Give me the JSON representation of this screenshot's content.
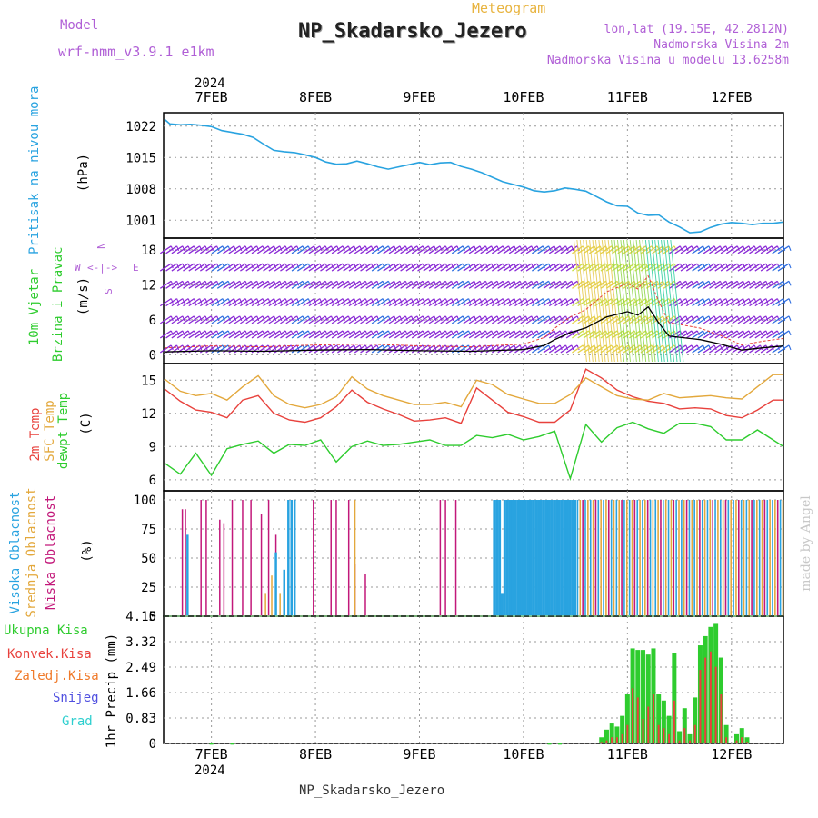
{
  "header": {
    "model_label": "Model",
    "model_name": "wrf-nmm_v3.9.1 e1km",
    "title": "Meteogram",
    "station": "NP_Skadarsko_Jezero",
    "lonlat": "lon,lat (19.15E, 42.2812N)",
    "elev": "Nadmorska Visina 2m",
    "elev_model": "Nadmorska Visina u modelu 13.6258m"
  },
  "footer_station": "NP_Skadarsko_Jezero",
  "credit": "made by Angel",
  "year_top": "2024",
  "year_bottom": "2024",
  "date_ticks": [
    "7FEB",
    "8FEB",
    "9FEB",
    "10FEB",
    "11FEB",
    "12FEB"
  ],
  "panels": {
    "pressure": {
      "label": "Pritisak na nivou mora",
      "unit": "(hPa)",
      "ticks": [
        "1022",
        "1015",
        "1008",
        "1001"
      ]
    },
    "wind": {
      "label1": "10m Vjetar",
      "label2": "Brzina i Pravac",
      "unit": "(m/s)",
      "ticks": [
        "18",
        "12",
        "6",
        "0"
      ],
      "compass": {
        "n": "N",
        "s": "S",
        "w": "W",
        "e": "E",
        "arrows": "<-|->"
      }
    },
    "temp": {
      "label1": "2m Temp",
      "label2": "SFC Temp",
      "label3": "dewpt Temp",
      "unit": "(C)",
      "ticks": [
        "15",
        "12",
        "9",
        "6"
      ]
    },
    "cloud": {
      "label1": "Visoka Oblacnost",
      "label2": "Srednja Oblacnost",
      "label3": "Niska Oblacnost",
      "unit": "(%)",
      "ticks": [
        "100",
        "75",
        "50",
        "25",
        "0"
      ]
    },
    "precip": {
      "unit": "1hr Precip (mm)",
      "ticks": [
        "4.15",
        "3.32",
        "2.49",
        "1.66",
        "0.83",
        "0"
      ],
      "legend": [
        "Ukupna Kisa",
        "Konvek.Kisa",
        "Zaledj.Kisa",
        "Snijeg",
        "Grad"
      ]
    }
  },
  "colors": {
    "pressure": "#29a3e0",
    "temp2m": "#e8413c",
    "sfc": "#e3a83c",
    "dewpt": "#2ecc2e",
    "high": "#29a3e0",
    "mid": "#e3a83c",
    "low": "#c2187a",
    "total": "#2ecc2e",
    "conv": "#e8413c",
    "frz": "#f07a2a",
    "snow": "#5050e0",
    "hail": "#2ecfcf",
    "axis_purple": "#b05fd6"
  },
  "chart_data": [
    {
      "type": "line",
      "name": "pressure",
      "x_range_days": [
        6.54,
        12.5
      ],
      "ylim": [
        997,
        1025
      ],
      "x": [
        6.55,
        6.6,
        6.7,
        6.8,
        6.9,
        7.0,
        7.1,
        7.2,
        7.3,
        7.4,
        7.5,
        7.6,
        7.7,
        7.8,
        7.9,
        8.0,
        8.1,
        8.2,
        8.3,
        8.4,
        8.5,
        8.6,
        8.7,
        8.8,
        8.9,
        9.0,
        9.1,
        9.2,
        9.3,
        9.4,
        9.5,
        9.6,
        9.7,
        9.8,
        9.9,
        10.0,
        10.1,
        10.2,
        10.3,
        10.4,
        10.5,
        10.6,
        10.7,
        10.8,
        10.9,
        11.0,
        11.1,
        11.2,
        11.3,
        11.4,
        11.5,
        11.6,
        11.7,
        11.8,
        11.9,
        12.0,
        12.1,
        12.2,
        12.3,
        12.4,
        12.5
      ],
      "y": [
        1023.5,
        1022.5,
        1022.3,
        1022.4,
        1022.2,
        1021.9,
        1021.0,
        1020.6,
        1020.2,
        1019.5,
        1018.0,
        1016.6,
        1016.3,
        1016.1,
        1015.6,
        1015.0,
        1014.0,
        1013.5,
        1013.6,
        1014.2,
        1013.6,
        1012.9,
        1012.4,
        1012.9,
        1013.4,
        1013.9,
        1013.4,
        1013.8,
        1013.9,
        1013.0,
        1012.4,
        1011.6,
        1010.6,
        1009.6,
        1009.0,
        1008.4,
        1007.6,
        1007.3,
        1007.6,
        1008.2,
        1007.9,
        1007.5,
        1006.3,
        1005.1,
        1004.2,
        1004.1,
        1002.6,
        1002.1,
        1002.2,
        1000.6,
        999.5,
        998.2,
        998.4,
        999.4,
        1000.1,
        1000.5,
        1000.3,
        1000.0,
        1000.3,
        1000.3,
        1000.6
      ]
    },
    {
      "type": "line",
      "name": "temperature",
      "ylim": [
        5,
        16.5
      ],
      "x": [
        6.55,
        6.7,
        6.85,
        7.0,
        7.15,
        7.3,
        7.45,
        7.6,
        7.75,
        7.9,
        8.05,
        8.2,
        8.35,
        8.5,
        8.65,
        8.8,
        8.95,
        9.1,
        9.25,
        9.4,
        9.55,
        9.7,
        9.85,
        10.0,
        10.15,
        10.3,
        10.45,
        10.6,
        10.75,
        10.9,
        11.05,
        11.2,
        11.35,
        11.5,
        11.65,
        11.8,
        11.95,
        12.1,
        12.25,
        12.4,
        12.5
      ],
      "series": [
        {
          "name": "2m Temp",
          "values": [
            14.2,
            13.1,
            12.3,
            12.1,
            11.6,
            13.2,
            13.6,
            12.0,
            11.4,
            11.2,
            11.6,
            12.6,
            14.1,
            13.0,
            12.4,
            11.9,
            11.3,
            11.4,
            11.6,
            11.1,
            14.3,
            13.2,
            12.1,
            11.7,
            11.2,
            11.2,
            12.3,
            16.0,
            15.2,
            14.1,
            13.5,
            13.1,
            12.9,
            12.4,
            12.5,
            12.4,
            11.8,
            11.6,
            12.3,
            13.2,
            13.2
          ]
        },
        {
          "name": "SFC Temp",
          "values": [
            15.1,
            14.0,
            13.6,
            13.8,
            13.2,
            14.4,
            15.4,
            13.6,
            12.8,
            12.5,
            12.8,
            13.5,
            15.3,
            14.2,
            13.6,
            13.2,
            12.8,
            12.8,
            13.0,
            12.6,
            15.0,
            14.6,
            13.7,
            13.3,
            12.9,
            12.9,
            13.7,
            15.2,
            14.4,
            13.6,
            13.3,
            13.2,
            13.8,
            13.4,
            13.5,
            13.6,
            13.4,
            13.3,
            14.4,
            15.5,
            15.5
          ]
        },
        {
          "name": "dewpt Temp",
          "values": [
            7.5,
            6.5,
            8.4,
            6.4,
            8.8,
            9.2,
            9.5,
            8.4,
            9.2,
            9.1,
            9.6,
            7.6,
            9.0,
            9.5,
            9.1,
            9.2,
            9.4,
            9.6,
            9.1,
            9.1,
            10.0,
            9.8,
            10.1,
            9.6,
            9.9,
            10.4,
            6.1,
            11.0,
            9.4,
            10.7,
            11.2,
            10.6,
            10.2,
            11.1,
            11.1,
            10.8,
            9.6,
            9.6,
            10.5,
            9.6,
            9.0
          ]
        }
      ]
    },
    {
      "type": "bar",
      "name": "precipitation",
      "ylim": [
        0,
        4.15
      ],
      "x": [
        10.75,
        10.8,
        10.85,
        10.9,
        10.95,
        11.0,
        11.05,
        11.1,
        11.15,
        11.2,
        11.25,
        11.3,
        11.35,
        11.4,
        11.45,
        11.5,
        11.55,
        11.6,
        11.65,
        11.7,
        11.75,
        11.8,
        11.85,
        11.9,
        11.95,
        12.05,
        12.1,
        12.15
      ],
      "series": [
        {
          "name": "Ukupna Kisa",
          "values": [
            0.2,
            0.45,
            0.65,
            0.55,
            0.9,
            1.6,
            3.1,
            3.05,
            3.05,
            2.9,
            3.1,
            1.6,
            1.4,
            0.9,
            2.95,
            0.4,
            1.15,
            0.3,
            1.5,
            3.2,
            3.5,
            3.8,
            3.9,
            2.8,
            0.6,
            0.3,
            0.5,
            0.2
          ]
        },
        {
          "name": "Konvek.Kisa",
          "values": [
            0.05,
            0.1,
            0.2,
            0.2,
            0.3,
            0.6,
            1.8,
            1.5,
            0.8,
            1.2,
            1.6,
            0.6,
            0.5,
            0.3,
            1.4,
            0.1,
            0.5,
            0.1,
            0.6,
            2.4,
            2.8,
            3.0,
            2.5,
            1.6,
            0.2,
            0.1,
            0.2,
            0.05
          ]
        }
      ]
    }
  ]
}
